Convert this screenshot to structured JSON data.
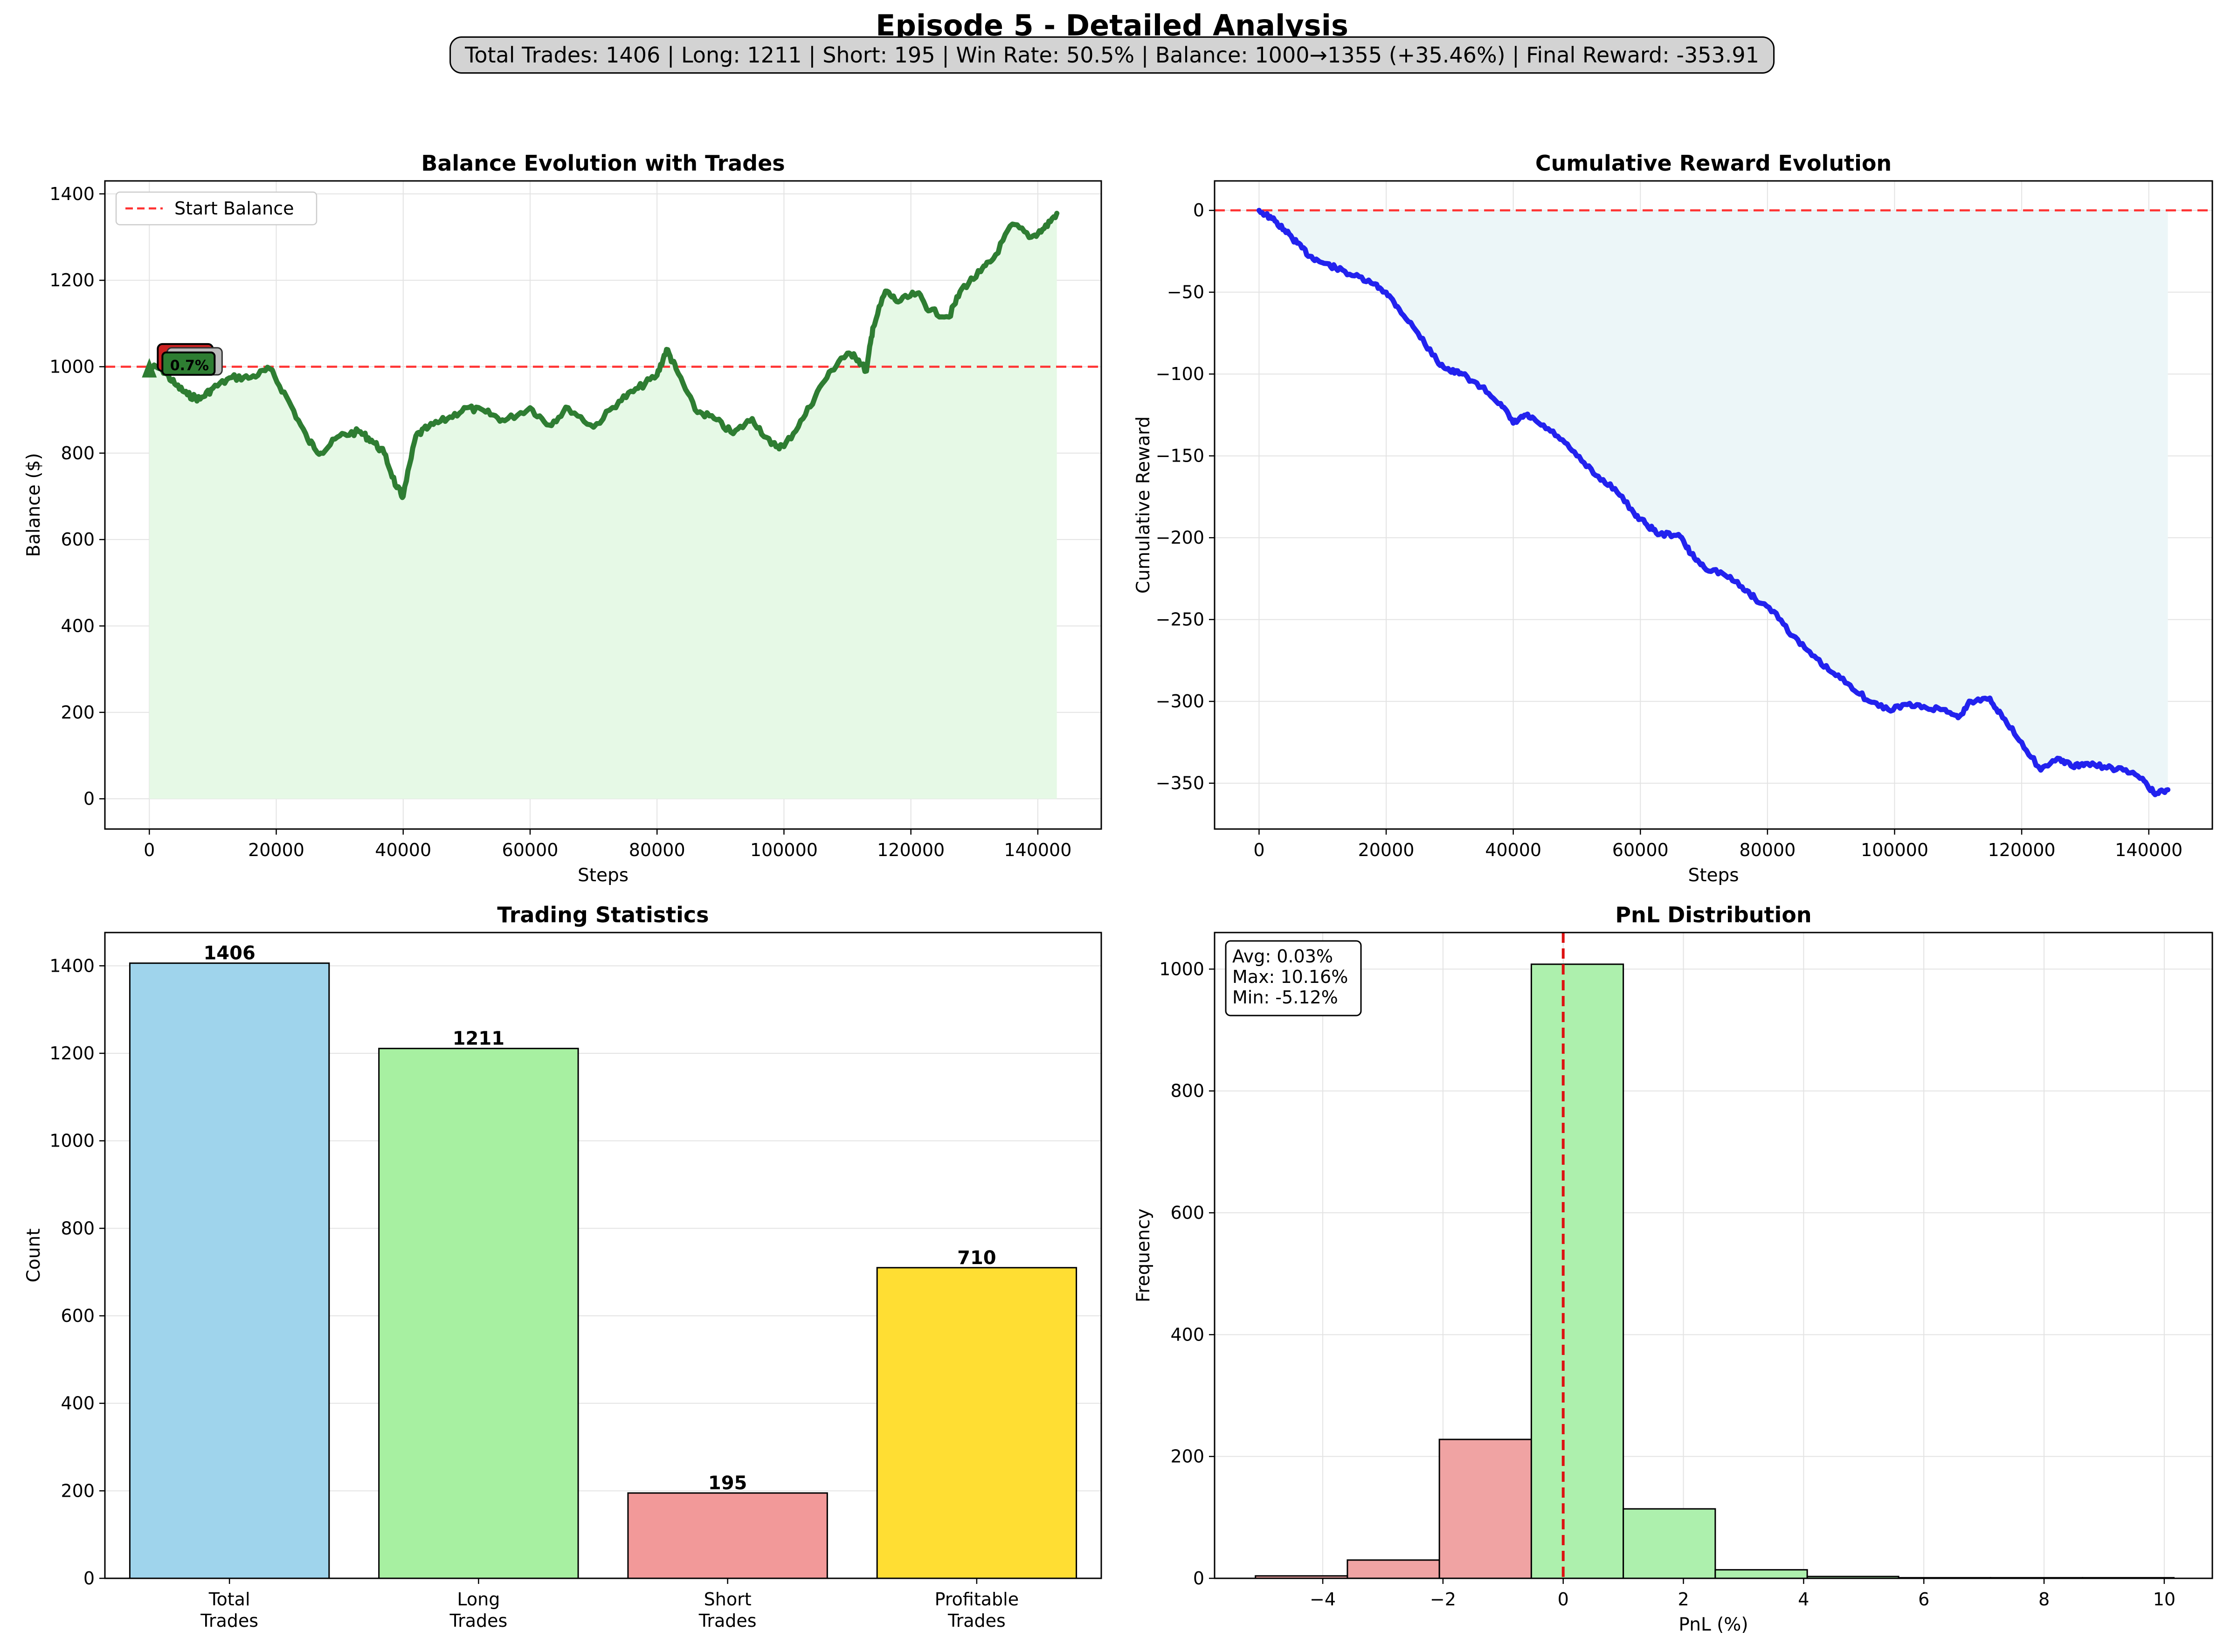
{
  "title": "Episode 5 - Detailed Analysis",
  "summary": "Total Trades: 1406 | Long: 1211 | Short: 195 | Win Rate: 50.5% | Balance: 1000→1355 (+35.46%) | Final Reward: -353.91",
  "chart_data": [
    {
      "type": "area",
      "title": "Balance Evolution with Trades",
      "xlabel": "Steps",
      "ylabel": "Balance ($)",
      "xlim": [
        -7000,
        150000
      ],
      "ylim": [
        -70,
        1430
      ],
      "xticks": [
        0,
        20000,
        40000,
        60000,
        80000,
        100000,
        120000,
        140000
      ],
      "yticks": [
        0,
        200,
        400,
        600,
        800,
        1000,
        1200,
        1400
      ],
      "grid": true,
      "legend": {
        "position": "top-left",
        "entries": [
          "Start Balance"
        ]
      },
      "reference_line": {
        "y": 1000,
        "label": "Start Balance",
        "color": "#ff0000",
        "style": "dashed"
      },
      "line_color": "#2e7d32",
      "fill_color": "#e6f9e6",
      "annotation_text": "0.7%",
      "x": [
        0,
        2000,
        4000,
        6000,
        8000,
        10000,
        13000,
        16000,
        19000,
        22000,
        25000,
        27000,
        30000,
        33000,
        35000,
        37000,
        39000,
        40000,
        42000,
        44000,
        47000,
        50000,
        53000,
        56000,
        60000,
        63000,
        66000,
        70000,
        74000,
        77000,
        80000,
        81500,
        83000,
        86000,
        89000,
        92000,
        95000,
        98000,
        100000,
        103000,
        106000,
        109000,
        111000,
        113000,
        114000,
        116000,
        118000,
        121000,
        123000,
        126000,
        128000,
        131000,
        133000,
        136000,
        139000,
        141000,
        143000
      ],
      "y": [
        1000,
        995,
        960,
        935,
        925,
        950,
        975,
        975,
        995,
        920,
        830,
        800,
        840,
        850,
        830,
        800,
        720,
        700,
        840,
        860,
        880,
        905,
        895,
        875,
        905,
        865,
        905,
        860,
        920,
        950,
        980,
        1040,
        995,
        900,
        880,
        845,
        880,
        820,
        815,
        880,
        960,
        1020,
        1030,
        990,
        1090,
        1175,
        1150,
        1170,
        1130,
        1115,
        1180,
        1220,
        1250,
        1330,
        1300,
        1320,
        1355
      ]
    },
    {
      "type": "area",
      "title": "Cumulative Reward Evolution",
      "xlabel": "Steps",
      "ylabel": "Cumulative Reward",
      "xlim": [
        -7000,
        150000
      ],
      "ylim": [
        -378,
        18
      ],
      "xticks": [
        0,
        20000,
        40000,
        60000,
        80000,
        100000,
        120000,
        140000
      ],
      "yticks": [
        0,
        -50,
        -100,
        -150,
        -200,
        -250,
        -300,
        -350
      ],
      "grid": true,
      "reference_line": {
        "y": 0,
        "color": "#ff0000",
        "style": "dashed"
      },
      "line_color": "#2222ee",
      "fill_color": "#ecf6f8",
      "x": [
        0,
        2000,
        4000,
        6000,
        8000,
        10000,
        12000,
        15000,
        18000,
        20000,
        22000,
        25000,
        28000,
        30000,
        32000,
        35000,
        38000,
        40000,
        42000,
        44000,
        47000,
        50000,
        53000,
        56000,
        59000,
        61000,
        63000,
        66000,
        68000,
        70000,
        73000,
        76000,
        78000,
        81000,
        84000,
        87000,
        90000,
        93000,
        96000,
        99000,
        102000,
        105000,
        108000,
        110000,
        112000,
        115000,
        117000,
        120000,
        123000,
        126000,
        128000,
        130000,
        133000,
        136000,
        139000,
        141000,
        143000
      ],
      "y": [
        0,
        -5,
        -12,
        -20,
        -28,
        -32,
        -35,
        -40,
        -45,
        -50,
        -60,
        -75,
        -92,
        -98,
        -100,
        -108,
        -118,
        -130,
        -125,
        -130,
        -138,
        -150,
        -162,
        -170,
        -185,
        -192,
        -198,
        -198,
        -210,
        -218,
        -222,
        -230,
        -237,
        -245,
        -260,
        -272,
        -282,
        -290,
        -300,
        -305,
        -302,
        -304,
        -305,
        -310,
        -300,
        -298,
        -310,
        -325,
        -342,
        -335,
        -340,
        -338,
        -340,
        -342,
        -347,
        -357,
        -354
      ]
    },
    {
      "type": "bar",
      "title": "Trading Statistics",
      "ylabel": "Count",
      "categories": [
        "Total\nTrades",
        "Long\nTrades",
        "Short\nTrades",
        "Profitable\nTrades"
      ],
      "category_lines": [
        [
          "Total",
          "Trades"
        ],
        [
          "Long",
          "Trades"
        ],
        [
          "Short",
          "Trades"
        ],
        [
          "Profitable",
          "Trades"
        ]
      ],
      "values": [
        1406,
        1211,
        195,
        710
      ],
      "data_labels": [
        "1406",
        "1211",
        "195",
        "710"
      ],
      "colors": [
        "#9fd4ec",
        "#a7f0a1",
        "#f29999",
        "#ffde33"
      ],
      "ylim": [
        0,
        1476
      ],
      "yticks": [
        0,
        200,
        400,
        600,
        800,
        1000,
        1200,
        1400
      ],
      "grid": true
    },
    {
      "type": "bar",
      "subtype": "histogram",
      "title": "PnL Distribution",
      "xlabel": "PnL (%)",
      "ylabel": "Frequency",
      "xlim": [
        -5.8,
        10.8
      ],
      "ylim": [
        0,
        1060
      ],
      "xticks": [
        -4,
        -2,
        0,
        2,
        4,
        6,
        8,
        10
      ],
      "yticks": [
        0,
        200,
        400,
        600,
        800,
        1000
      ],
      "grid": true,
      "bins": [
        {
          "start": -5.12,
          "end": -3.59,
          "count": 4,
          "color": "#f0a3a3"
        },
        {
          "start": -3.59,
          "end": -2.06,
          "count": 30,
          "color": "#f0a3a3"
        },
        {
          "start": -2.06,
          "end": -0.53,
          "count": 228,
          "color": "#f0a3a3"
        },
        {
          "start": -0.53,
          "end": 1.0,
          "count": 1008,
          "color": "#adf0ad"
        },
        {
          "start": 1.0,
          "end": 2.53,
          "count": 114,
          "color": "#adf0ad"
        },
        {
          "start": 2.53,
          "end": 4.06,
          "count": 14,
          "color": "#adf0ad"
        },
        {
          "start": 4.06,
          "end": 5.58,
          "count": 3,
          "color": "#adf0ad"
        },
        {
          "start": 5.58,
          "end": 7.11,
          "count": 1,
          "color": "#adf0ad"
        },
        {
          "start": 7.11,
          "end": 8.64,
          "count": 1,
          "color": "#adf0ad"
        },
        {
          "start": 8.64,
          "end": 10.16,
          "count": 1,
          "color": "#adf0ad"
        }
      ],
      "reference_line": {
        "x": 0,
        "color": "#dd0000",
        "style": "dashed"
      },
      "stats_lines": [
        "Avg: 0.03%",
        "Max: 10.16%",
        "Min: -5.12%"
      ]
    }
  ]
}
